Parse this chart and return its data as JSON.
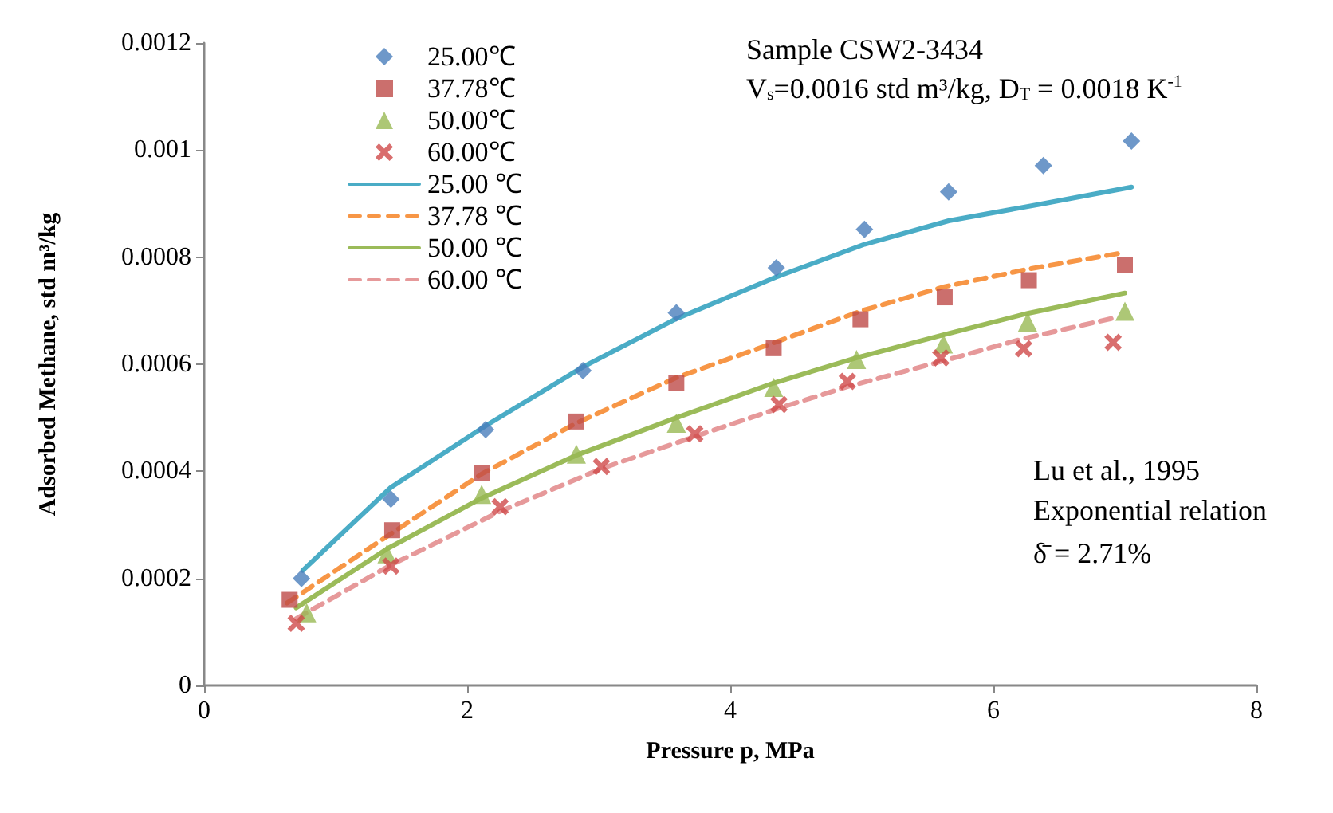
{
  "chart_data": {
    "type": "scatter",
    "xlabel": "Pressure p, MPa",
    "ylabel": "Adsorbed Methane, std m³/kg",
    "annotations": [
      "Sample CSW2-3434",
      "V$_{s}$=0.0016 std m³/kg, D$_{T}$ = 0.0018 K$^{-1}$",
      "Lu et al., 1995",
      "Exponential relation",
      "δ̄ = 2.71%"
    ],
    "xlim": [
      0,
      8
    ],
    "xticks": [
      0,
      2,
      4,
      6,
      8
    ],
    "ylim": [
      0,
      0.0012
    ],
    "yticks": [
      0,
      0.0002,
      0.0004,
      0.0006,
      0.0008,
      0.001,
      0.0012
    ],
    "grid": false,
    "legend": "top left",
    "series": [
      {
        "name": "25.00℃",
        "marker": "diamond",
        "color": "#4a7ebb",
        "x": [
          0.74,
          1.42,
          2.14,
          2.88,
          3.59,
          4.35,
          5.02,
          5.66,
          6.38,
          7.05
        ],
        "values": [
          0.0002,
          0.000348,
          0.000478,
          0.000588,
          0.000696,
          0.00078,
          0.000852,
          0.000922,
          0.000971,
          0.001017
        ]
      },
      {
        "name": "37.78℃",
        "marker": "square",
        "color": "#be4b48",
        "x": [
          0.65,
          1.43,
          2.11,
          2.83,
          3.59,
          4.33,
          4.99,
          5.63,
          6.27,
          7.0
        ],
        "values": [
          0.00016,
          0.00029,
          0.000397,
          0.000493,
          0.000565,
          0.00063,
          0.000684,
          0.000725,
          0.000757,
          0.000786
        ]
      },
      {
        "name": "50.00℃",
        "marker": "triangle",
        "color": "#98b954",
        "x": [
          0.78,
          1.39,
          2.11,
          2.83,
          3.59,
          4.33,
          4.96,
          5.62,
          6.26,
          7.0
        ],
        "values": [
          0.000136,
          0.000246,
          0.000357,
          0.000432,
          0.00049,
          0.000557,
          0.000609,
          0.000638,
          0.000679,
          0.000699
        ]
      },
      {
        "name": "60.00℃",
        "marker": "cross",
        "color": "#d04a4a",
        "x": [
          0.7,
          1.42,
          2.25,
          3.02,
          3.73,
          4.37,
          4.89,
          5.6,
          6.23,
          6.91
        ],
        "values": [
          0.000116,
          0.000223,
          0.000334,
          0.000409,
          0.00047,
          0.000525,
          0.000568,
          0.000612,
          0.000629,
          0.000641
        ]
      },
      {
        "name": "25.00 ℃",
        "type": "line",
        "line_style": "solid",
        "color": "#4aacc6",
        "x": [
          0.75,
          1.42,
          2.14,
          2.88,
          3.59,
          4.35,
          5.02,
          5.66,
          6.38,
          7.05
        ],
        "values": [
          0.000215,
          0.00037,
          0.000485,
          0.000595,
          0.000685,
          0.000763,
          0.000824,
          0.000868,
          0.0009,
          0.000931
        ]
      },
      {
        "name": "37.78 ℃",
        "type": "line",
        "line_style": "dashed",
        "color": "#f79646",
        "x": [
          0.63,
          1.43,
          2.11,
          2.83,
          3.59,
          4.33,
          5.0,
          5.63,
          6.27,
          7.0
        ],
        "values": [
          0.000154,
          0.000285,
          0.000395,
          0.00049,
          0.000575,
          0.00064,
          0.0007,
          0.000745,
          0.000778,
          0.000809
        ]
      },
      {
        "name": "50.00 ℃",
        "type": "line",
        "line_style": "solid",
        "color": "#9bbb59",
        "x": [
          0.7,
          1.39,
          2.11,
          2.83,
          3.59,
          4.33,
          4.96,
          5.62,
          6.26,
          7.0
        ],
        "values": [
          0.000145,
          0.000255,
          0.00035,
          0.00043,
          0.0005,
          0.000565,
          0.000612,
          0.000655,
          0.000695,
          0.000733
        ]
      },
      {
        "name": "60.00 ℃",
        "type": "line",
        "line_style": "dashed",
        "color": "#e6999a",
        "x": [
          0.7,
          1.42,
          2.25,
          3.02,
          3.73,
          4.37,
          4.89,
          5.6,
          6.23,
          6.91
        ],
        "values": [
          0.000125,
          0.000225,
          0.000325,
          0.000405,
          0.000465,
          0.000518,
          0.000558,
          0.000605,
          0.000648,
          0.000686
        ]
      }
    ]
  }
}
